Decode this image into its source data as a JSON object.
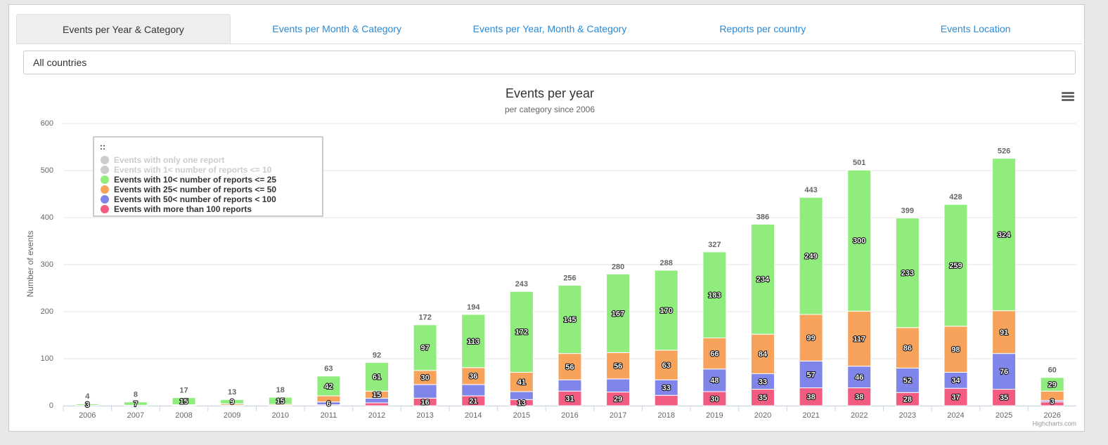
{
  "tabs": [
    "Events per Year & Category",
    "Events per Month & Category",
    "Events per Year, Month & Category",
    "Reports per country",
    "Events Location"
  ],
  "active_tab": 0,
  "country_select": "All countries",
  "chart_data": {
    "type": "bar",
    "stacked": true,
    "title": "Events per year",
    "subtitle": "per category since 2006",
    "y_axis_label": "Number of events",
    "categories": [
      "2006",
      "2007",
      "2008",
      "2009",
      "2010",
      "2011",
      "2012",
      "2013",
      "2014",
      "2015",
      "2016",
      "2017",
      "2018",
      "2019",
      "2020",
      "2021",
      "2022",
      "2023",
      "2024",
      "2025",
      "2026"
    ],
    "series": [
      {
        "name": "Events with only one report",
        "color": "#7cb5ec",
        "visible": false,
        "values": [
          null,
          null,
          null,
          null,
          null,
          null,
          null,
          null,
          null,
          null,
          null,
          null,
          null,
          null,
          null,
          null,
          null,
          null,
          null,
          null,
          null
        ]
      },
      {
        "name": "Events with 1< number of reports <= 10",
        "color": "#434348",
        "visible": false,
        "values": [
          null,
          null,
          null,
          null,
          null,
          null,
          null,
          null,
          null,
          null,
          null,
          null,
          null,
          null,
          null,
          null,
          null,
          null,
          null,
          null,
          null
        ]
      },
      {
        "name": "Events with 10< number of reports <= 25",
        "color": "#90ed7d",
        "visible": true,
        "values": [
          3,
          7,
          15,
          9,
          15,
          42,
          61,
          97,
          113,
          172,
          145,
          167,
          170,
          183,
          234,
          249,
          300,
          233,
          259,
          324,
          29
        ],
        "value_labels": [
          3,
          7,
          15,
          9,
          15,
          42,
          61,
          97,
          113,
          172,
          145,
          167,
          170,
          183,
          234,
          249,
          300,
          233,
          259,
          324,
          29
        ]
      },
      {
        "name": "Events with 25< number of reports <= 50",
        "color": "#f7a35c",
        "visible": true,
        "values": [
          1,
          1,
          1,
          3,
          2,
          13,
          15,
          30,
          36,
          41,
          56,
          56,
          63,
          66,
          84,
          99,
          117,
          86,
          98,
          91,
          20
        ],
        "value_labels": [
          null,
          null,
          null,
          null,
          null,
          null,
          15,
          30,
          36,
          41,
          56,
          56,
          63,
          66,
          84,
          99,
          117,
          86,
          98,
          91,
          null
        ]
      },
      {
        "name": "Events with 50< number of reports < 100",
        "color": "#8085e9",
        "visible": true,
        "values": [
          0,
          0,
          1,
          0,
          1,
          6,
          10,
          29,
          24,
          17,
          24,
          28,
          33,
          48,
          33,
          57,
          46,
          52,
          34,
          76,
          3
        ],
        "value_labels": [
          null,
          null,
          null,
          null,
          null,
          6,
          null,
          null,
          null,
          null,
          null,
          null,
          33,
          48,
          33,
          57,
          46,
          52,
          34,
          76,
          3
        ]
      },
      {
        "name": "Events with more than 100 reports",
        "color": "#f15c80",
        "visible": true,
        "values": [
          0,
          0,
          0,
          1,
          0,
          2,
          6,
          16,
          21,
          13,
          31,
          29,
          22,
          30,
          35,
          38,
          38,
          28,
          37,
          35,
          8
        ],
        "value_labels": [
          null,
          null,
          null,
          null,
          null,
          null,
          null,
          16,
          21,
          13,
          31,
          29,
          null,
          30,
          35,
          38,
          38,
          28,
          37,
          35,
          null
        ]
      }
    ],
    "stack_labels": [
      4,
      8,
      17,
      13,
      18,
      63,
      92,
      172,
      194,
      243,
      256,
      280,
      288,
      327,
      386,
      443,
      501,
      399,
      428,
      526,
      60
    ],
    "ylim": [
      0,
      600
    ],
    "yticks": [
      0,
      100,
      200,
      300,
      400,
      500,
      600
    ],
    "grid": true,
    "legend": {
      "title": "::",
      "position": "top-left"
    },
    "credits": "Highcharts.com"
  }
}
